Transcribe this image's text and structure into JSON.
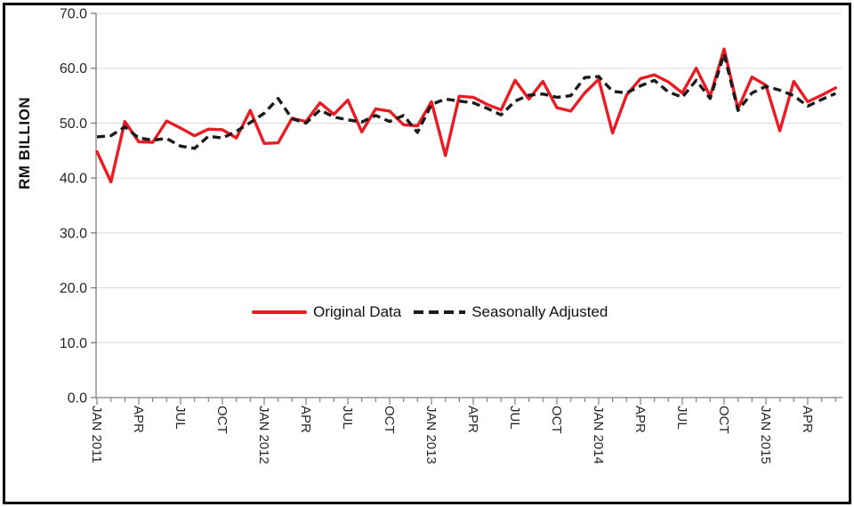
{
  "chart_data": {
    "type": "line",
    "title": "",
    "ylabel": "RM BILLION",
    "ylim": [
      0,
      70
    ],
    "grid": "horizontal",
    "legend_position": "inside-bottom-center",
    "yticks": [
      {
        "value": 70,
        "label": "70.0"
      },
      {
        "value": 60,
        "label": "60.0"
      },
      {
        "value": 50,
        "label": "50.0"
      },
      {
        "value": 40,
        "label": "40.0"
      },
      {
        "value": 30,
        "label": "30.0"
      },
      {
        "value": 20,
        "label": "20.0"
      },
      {
        "value": 10,
        "label": "10.0"
      },
      {
        "value": 0,
        "label": "0.0"
      }
    ],
    "x_tick_labels": [
      {
        "index": 0,
        "label": "JAN 2011"
      },
      {
        "index": 3,
        "label": "APR"
      },
      {
        "index": 6,
        "label": "JUL"
      },
      {
        "index": 9,
        "label": "OCT"
      },
      {
        "index": 12,
        "label": "JAN 2012"
      },
      {
        "index": 15,
        "label": "APR"
      },
      {
        "index": 18,
        "label": "JUL"
      },
      {
        "index": 21,
        "label": "OCT"
      },
      {
        "index": 24,
        "label": "JAN 2013"
      },
      {
        "index": 27,
        "label": "APR"
      },
      {
        "index": 30,
        "label": "JUL"
      },
      {
        "index": 33,
        "label": "OCT"
      },
      {
        "index": 36,
        "label": "JAN 2014"
      },
      {
        "index": 39,
        "label": "APR"
      },
      {
        "index": 42,
        "label": "JUL"
      },
      {
        "index": 45,
        "label": "OCT"
      },
      {
        "index": 48,
        "label": "JAN 2015"
      },
      {
        "index": 51,
        "label": "APR"
      }
    ],
    "x_categories": [
      "JAN 2011",
      "FEB 2011",
      "MAR 2011",
      "APR 2011",
      "MAY 2011",
      "JUN 2011",
      "JUL 2011",
      "AUG 2011",
      "SEP 2011",
      "OCT 2011",
      "NOV 2011",
      "DEC 2011",
      "JAN 2012",
      "FEB 2012",
      "MAR 2012",
      "APR 2012",
      "MAY 2012",
      "JUN 2012",
      "JUL 2012",
      "AUG 2012",
      "SEP 2012",
      "OCT 2012",
      "NOV 2012",
      "DEC 2012",
      "JAN 2013",
      "FEB 2013",
      "MAR 2013",
      "APR 2013",
      "MAY 2013",
      "JUN 2013",
      "JUL 2013",
      "AUG 2013",
      "SEP 2013",
      "OCT 2013",
      "NOV 2013",
      "DEC 2013",
      "JAN 2014",
      "FEB 2014",
      "MAR 2014",
      "APR 2014",
      "MAY 2014",
      "JUN 2014",
      "JUL 2014",
      "AUG 2014",
      "SEP 2014",
      "OCT 2014",
      "NOV 2014",
      "DEC 2014",
      "JAN 2015",
      "FEB 2015",
      "MAR 2015",
      "APR 2015",
      "MAY 2015",
      "JUN 2015"
    ],
    "series": [
      {
        "name": "Original Data",
        "color": "#ea1b22",
        "dash": "solid",
        "values": [
          44.8,
          39.3,
          50.3,
          46.6,
          46.5,
          50.4,
          49.1,
          47.7,
          48.9,
          48.8,
          47.3,
          52.3,
          46.3,
          46.4,
          50.9,
          50.3,
          53.7,
          51.6,
          54.2,
          48.4,
          52.6,
          52.2,
          49.7,
          49.5,
          53.9,
          44.1,
          54.9,
          54.7,
          53.4,
          52.4,
          57.8,
          54.4,
          57.6,
          52.8,
          52.2,
          55.5,
          58.0,
          48.2,
          55.1,
          58.1,
          58.8,
          57.5,
          55.5,
          60.0,
          54.9,
          63.5,
          52.6,
          58.4,
          56.9,
          48.6,
          57.6,
          53.9,
          55.1,
          56.4
        ]
      },
      {
        "name": "Seasonally Adjusted",
        "color": "#1a1a1a",
        "dash": "dashed",
        "values": [
          47.5,
          47.7,
          49.3,
          47.3,
          46.9,
          47.2,
          45.8,
          45.4,
          47.6,
          47.3,
          48.5,
          50.1,
          51.8,
          54.5,
          50.8,
          50.0,
          52.4,
          51.1,
          50.6,
          50.2,
          51.4,
          50.3,
          51.4,
          48.3,
          53.4,
          54.4,
          54.0,
          53.7,
          52.7,
          51.5,
          54.0,
          55.1,
          55.3,
          54.7,
          55.0,
          58.3,
          58.5,
          55.8,
          55.5,
          56.8,
          57.8,
          55.7,
          54.7,
          57.8,
          54.5,
          62.6,
          52.3,
          55.5,
          56.7,
          56.0,
          55.0,
          53.1,
          54.3,
          55.4
        ]
      }
    ],
    "colors": {
      "gridline": "#d9d9d9",
      "axis": "#7f7f7f",
      "tick_text": "#262626"
    }
  }
}
